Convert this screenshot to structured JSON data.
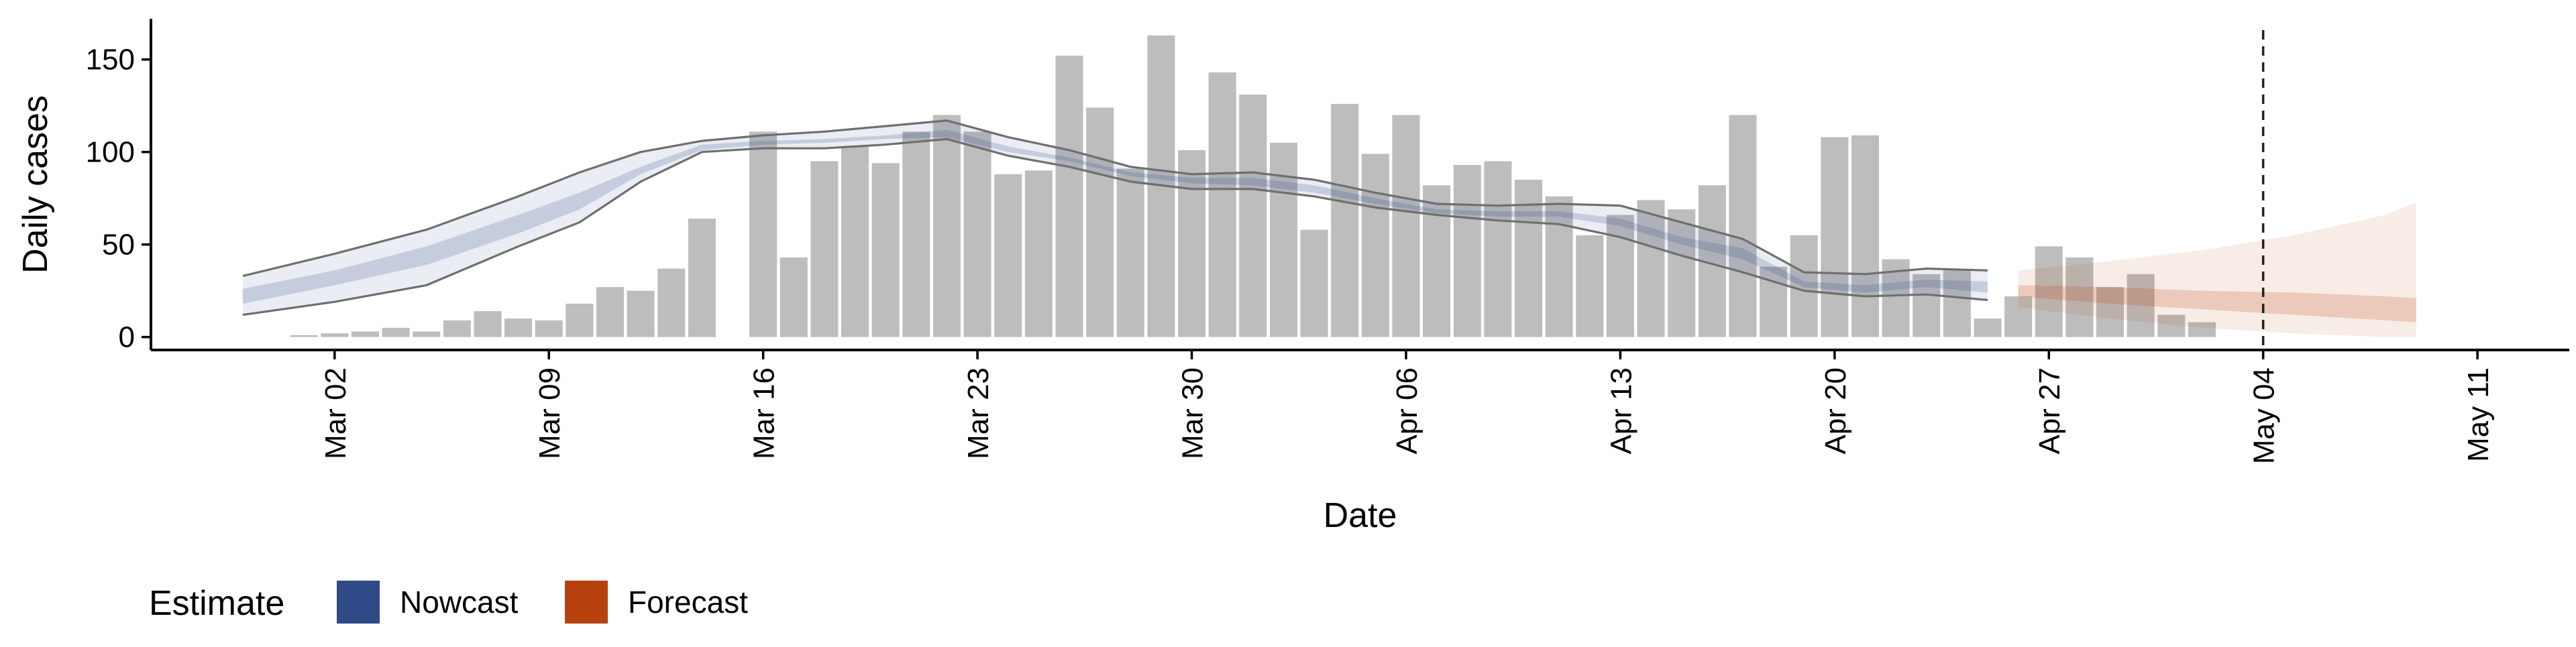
{
  "chart_data": {
    "type": "bar",
    "xlabel": "Date",
    "ylabel": "Daily cases",
    "ylim": [
      -7,
      172
    ],
    "x_range": [
      "2020-02-25",
      "2020-05-14"
    ],
    "yticks": [
      0,
      50,
      100,
      150
    ],
    "xticks": [
      {
        "date": "2020-03-02",
        "label": "Mar 02"
      },
      {
        "date": "2020-03-09",
        "label": "Mar 09"
      },
      {
        "date": "2020-03-16",
        "label": "Mar 16"
      },
      {
        "date": "2020-03-23",
        "label": "Mar 23"
      },
      {
        "date": "2020-03-30",
        "label": "Mar 30"
      },
      {
        "date": "2020-04-06",
        "label": "Apr 06"
      },
      {
        "date": "2020-04-13",
        "label": "Apr 13"
      },
      {
        "date": "2020-04-20",
        "label": "Apr 20"
      },
      {
        "date": "2020-04-27",
        "label": "Apr 27"
      },
      {
        "date": "2020-05-04",
        "label": "May 04"
      },
      {
        "date": "2020-05-11",
        "label": "May 11"
      }
    ],
    "bars": {
      "name": "Daily cases",
      "color": "#bdbdbd",
      "dates": [
        "2020-03-01",
        "2020-03-02",
        "2020-03-03",
        "2020-03-04",
        "2020-03-05",
        "2020-03-06",
        "2020-03-07",
        "2020-03-08",
        "2020-03-09",
        "2020-03-10",
        "2020-03-11",
        "2020-03-12",
        "2020-03-13",
        "2020-03-14",
        "2020-03-15",
        "2020-03-16",
        "2020-03-17",
        "2020-03-18",
        "2020-03-19",
        "2020-03-20",
        "2020-03-21",
        "2020-03-22",
        "2020-03-23",
        "2020-03-24",
        "2020-03-25",
        "2020-03-26",
        "2020-03-27",
        "2020-03-28",
        "2020-03-29",
        "2020-03-30",
        "2020-03-31",
        "2020-04-01",
        "2020-04-02",
        "2020-04-03",
        "2020-04-04",
        "2020-04-05",
        "2020-04-06",
        "2020-04-07",
        "2020-04-08",
        "2020-04-09",
        "2020-04-10",
        "2020-04-11",
        "2020-04-12",
        "2020-04-13",
        "2020-04-14",
        "2020-04-15",
        "2020-04-16",
        "2020-04-17",
        "2020-04-18",
        "2020-04-19",
        "2020-04-20",
        "2020-04-21",
        "2020-04-22",
        "2020-04-23",
        "2020-04-24",
        "2020-04-25",
        "2020-04-26",
        "2020-04-27",
        "2020-04-28",
        "2020-04-29",
        "2020-04-30",
        "2020-05-01",
        "2020-05-02",
        "2020-05-03",
        "2020-05-04"
      ],
      "values": [
        1,
        2,
        3,
        5,
        3,
        9,
        14,
        10,
        9,
        18,
        27,
        25,
        37,
        64,
        0,
        111,
        43,
        95,
        103,
        94,
        111,
        120,
        111,
        88,
        90,
        152,
        124,
        91,
        163,
        101,
        143,
        131,
        105,
        58,
        126,
        99,
        120,
        82,
        93,
        95,
        85,
        76,
        55,
        66,
        74,
        69,
        82,
        120,
        38,
        55,
        108,
        109,
        42,
        34,
        36,
        10,
        22,
        49,
        43,
        27,
        34,
        12,
        8,
        0,
        0
      ]
    },
    "series": [
      {
        "name": "Nowcast",
        "color": "#2e4a87",
        "dates": [
          "2020-02-28",
          "2020-03-02",
          "2020-03-05",
          "2020-03-08",
          "2020-03-10",
          "2020-03-12",
          "2020-03-14",
          "2020-03-16",
          "2020-03-18",
          "2020-03-20",
          "2020-03-22",
          "2020-03-24",
          "2020-03-26",
          "2020-03-28",
          "2020-03-30",
          "2020-04-01",
          "2020-04-03",
          "2020-04-05",
          "2020-04-07",
          "2020-04-09",
          "2020-04-11",
          "2020-04-13",
          "2020-04-15",
          "2020-04-17",
          "2020-04-19",
          "2020-04-21",
          "2020-04-23",
          "2020-04-25"
        ],
        "upper_90": [
          33,
          45,
          58,
          76,
          89,
          100,
          106,
          109,
          111,
          114,
          117,
          108,
          101,
          92,
          88,
          89,
          85,
          78,
          72,
          71,
          72,
          71,
          62,
          53,
          35,
          34,
          37,
          36
        ],
        "upper_50": [
          26,
          36,
          49,
          66,
          78,
          92,
          104,
          106,
          107,
          109,
          112,
          103,
          97,
          89,
          86,
          86,
          82,
          75,
          69,
          68,
          68,
          64,
          54,
          48,
          30,
          28,
          31,
          30
        ],
        "lower_50": [
          18,
          28,
          39,
          56,
          69,
          88,
          101,
          104,
          105,
          107,
          108,
          100,
          95,
          87,
          83,
          82,
          78,
          72,
          67,
          65,
          65,
          60,
          50,
          42,
          27,
          24,
          27,
          24
        ],
        "lower_90": [
          12,
          19,
          28,
          49,
          62,
          84,
          100,
          102,
          102,
          104,
          107,
          98,
          92,
          84,
          80,
          80,
          76,
          70,
          66,
          63,
          61,
          54,
          44,
          35,
          25,
          22,
          23,
          20
        ]
      },
      {
        "name": "Forecast",
        "color": "#b7410e",
        "dates": [
          "2020-04-26",
          "2020-04-29",
          "2020-05-02",
          "2020-05-05",
          "2020-05-08",
          "2020-05-09"
        ],
        "upper_90": [
          36,
          41,
          47,
          55,
          66,
          73
        ],
        "upper_50": [
          28,
          27,
          25,
          24,
          22,
          21
        ],
        "lower_50": [
          22,
          18,
          15,
          12,
          9,
          8
        ],
        "lower_90": [
          16,
          10,
          5,
          2,
          0,
          0
        ]
      }
    ],
    "vline": {
      "date": "2020-05-04",
      "style": "dashed"
    },
    "legend": {
      "title": "Estimate",
      "position": "bottom-left",
      "items": [
        {
          "label": "Nowcast",
          "color": "#2e4a87"
        },
        {
          "label": "Forecast",
          "color": "#b7410e"
        }
      ]
    },
    "grid": false
  }
}
